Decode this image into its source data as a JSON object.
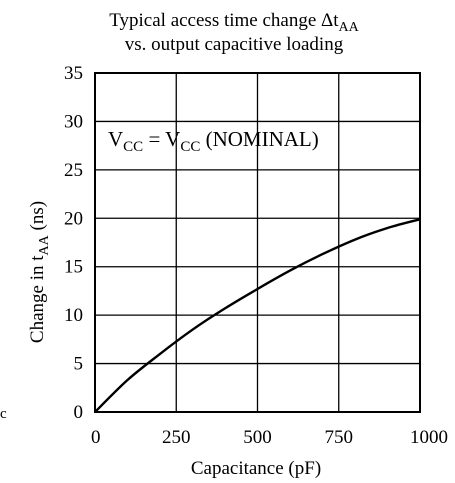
{
  "chart_data": {
    "type": "line",
    "title_line1_main": "Typical access time change Δt",
    "title_line1_sub": "AA",
    "title_line2": "vs. output capacitive loading",
    "annotation": {
      "v1": "V",
      "s1": "CC",
      "eq": " = V",
      "s2": "CC",
      "rest": " (NOMINAL)"
    },
    "xlabel": "Capacitance  (pF)",
    "ylabel_main": "Change in t",
    "ylabel_sub": "AA",
    "ylabel_unit": " (ns)",
    "xlim": [
      0,
      1000
    ],
    "ylim": [
      0,
      35
    ],
    "xticks": [
      0,
      250,
      500,
      750,
      1000
    ],
    "yticks": [
      0,
      5,
      10,
      15,
      20,
      25,
      30,
      35
    ],
    "grid": true,
    "series": [
      {
        "x": [
          0,
          100,
          200,
          300,
          400,
          500,
          600,
          700,
          800,
          900,
          1000
        ],
        "y": [
          0,
          3.3,
          6.0,
          8.5,
          10.7,
          12.7,
          14.6,
          16.3,
          17.8,
          19.0,
          19.9
        ]
      }
    ],
    "stray_mark": "c"
  }
}
